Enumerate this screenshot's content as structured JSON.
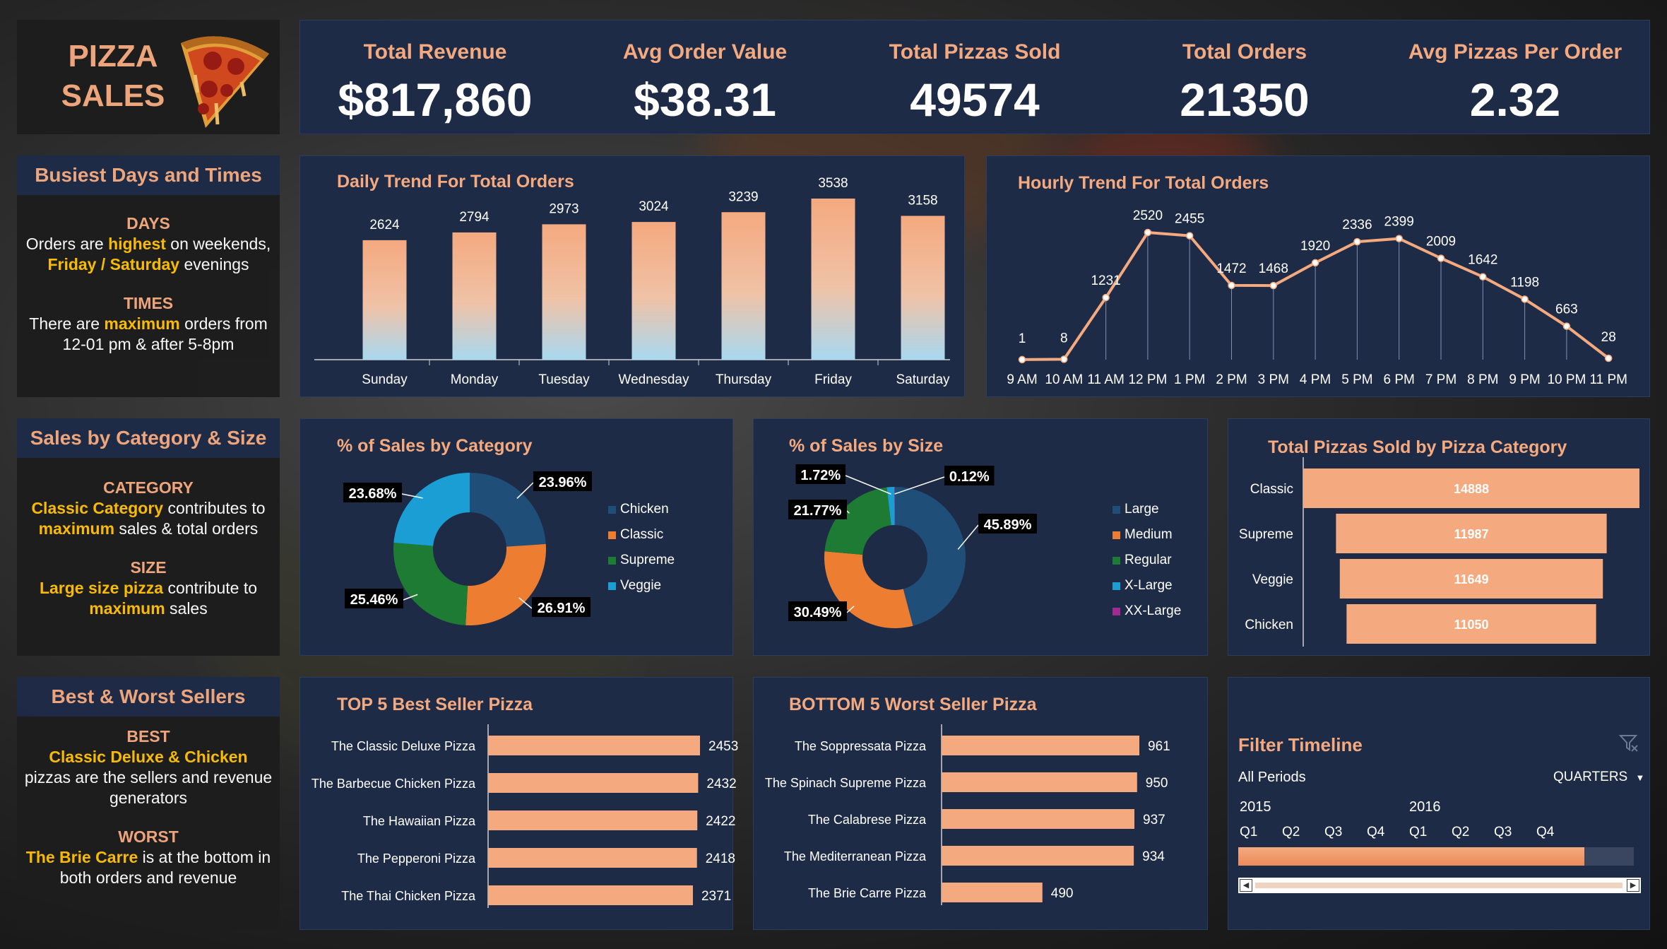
{
  "logo": {
    "line1": "PIZZA",
    "line2": "SALES"
  },
  "kpis": [
    {
      "label": "Total Revenue",
      "value": "$817,860"
    },
    {
      "label": "Avg Order Value",
      "value": "$38.31"
    },
    {
      "label": "Total Pizzas Sold",
      "value": "49574"
    },
    {
      "label": "Total Orders",
      "value": "21350"
    },
    {
      "label": "Avg Pizzas Per Order",
      "value": "2.32"
    }
  ],
  "busiest": {
    "title": "Busiest Days and Times",
    "days_label": "DAYS",
    "days_t1": "Orders are ",
    "days_h1": "highest",
    "days_t2": " on weekends, ",
    "days_h2": "Friday / Saturday",
    "days_t3": " evenings",
    "times_label": "TIMES",
    "times_t1": "There are ",
    "times_h1": "maximum",
    "times_t2": " orders from 12-01 pm & after 5-8pm"
  },
  "category_size": {
    "title": "Sales by Category & Size",
    "cat_label": "CATEGORY",
    "cat_h1": "Classic Category",
    "cat_t1": " contributes to ",
    "cat_h2": "maximum",
    "cat_t2": " sales & total orders",
    "size_label": "SIZE",
    "size_h1": "Large size pizza",
    "size_t1": " contribute to ",
    "size_h2": "maximum",
    "size_t2": " sales"
  },
  "best_worst": {
    "title": "Best & Worst Sellers",
    "best_label": "BEST",
    "best_h1": "Classic Deluxe & Chicken",
    "best_t1": " pizzas are the sellers and revenue generators",
    "worst_label": "WORST",
    "worst_h1": "The Brie Carre",
    "worst_t1": " is at the bottom in both orders and revenue"
  },
  "chart_data": [
    {
      "type": "bar",
      "title": "Daily Trend For Total Orders",
      "categories": [
        "Sunday",
        "Monday",
        "Tuesday",
        "Wednesday",
        "Thursday",
        "Friday",
        "Saturday"
      ],
      "values": [
        2624,
        2794,
        2973,
        3024,
        3239,
        3538,
        3158
      ],
      "value_labels": [
        "2624",
        "2794",
        "2973",
        "3024",
        "3239",
        "3538",
        "3158"
      ],
      "ylim": [
        0,
        3538
      ]
    },
    {
      "type": "line",
      "title": "Hourly Trend For Total Orders",
      "categories": [
        "9 AM",
        "10 AM",
        "11 AM",
        "12 PM",
        "1 PM",
        "2 PM",
        "3 PM",
        "4 PM",
        "5 PM",
        "6 PM",
        "7 PM",
        "8 PM",
        "9 PM",
        "10 PM",
        "11 PM"
      ],
      "values": [
        1,
        8,
        1231,
        2520,
        2455,
        1472,
        1468,
        1920,
        2336,
        2399,
        2009,
        1642,
        1198,
        663,
        28
      ],
      "value_labels": [
        "1",
        "8",
        "1231",
        "2520",
        "2455",
        "1472",
        "1468",
        "1920",
        "2336",
        "2399",
        "2009",
        "1642",
        "1198",
        "663",
        "28"
      ],
      "ylim": [
        0,
        2520
      ]
    },
    {
      "type": "pie",
      "title": "% of Sales by Category",
      "labels": [
        "Chicken",
        "Classic",
        "Supreme",
        "Veggie"
      ],
      "values": [
        23.96,
        26.91,
        25.46,
        23.68
      ],
      "value_labels": [
        "23.96%",
        "26.91%",
        "25.46%",
        "23.68%"
      ],
      "colors": [
        "#1f4e79",
        "#ed7d31",
        "#1e7b34",
        "#1a9ed4"
      ],
      "legend": "right"
    },
    {
      "type": "pie",
      "title": "% of Sales by Size",
      "labels": [
        "Large",
        "Medium",
        "Regular",
        "X-Large",
        "XX-Large"
      ],
      "values": [
        45.89,
        30.49,
        21.77,
        1.72,
        0.12
      ],
      "value_labels": [
        "45.89%",
        "30.49%",
        "21.77%",
        "1.72%",
        "0.12%"
      ],
      "colors": [
        "#1f4e79",
        "#ed7d31",
        "#1e7b34",
        "#1a9ed4",
        "#a02b93"
      ],
      "legend": "right"
    },
    {
      "type": "bar",
      "orientation": "horizontal",
      "title": "Total Pizzas Sold by Pizza Category",
      "categories": [
        "Classic",
        "Supreme",
        "Veggie",
        "Chicken"
      ],
      "values": [
        14888,
        11987,
        11649,
        11050
      ],
      "value_labels": [
        "14888",
        "11987",
        "11649",
        "11050"
      ]
    },
    {
      "type": "bar",
      "orientation": "horizontal",
      "title": "TOP 5 Best Seller Pizza",
      "categories": [
        "The Classic Deluxe Pizza",
        "The Barbecue Chicken Pizza",
        "The Hawaiian Pizza",
        "The Pepperoni Pizza",
        "The Thai Chicken Pizza"
      ],
      "values": [
        2453,
        2432,
        2422,
        2418,
        2371
      ],
      "value_labels": [
        "2453",
        "2432",
        "2422",
        "2418",
        "2371"
      ]
    },
    {
      "type": "bar",
      "orientation": "horizontal",
      "title": "BOTTOM 5 Worst Seller Pizza",
      "categories": [
        "The Soppressata Pizza",
        "The Spinach Supreme Pizza",
        "The Calabrese Pizza",
        "The Mediterranean Pizza",
        "The Brie Carre Pizza"
      ],
      "values": [
        961,
        950,
        937,
        934,
        490
      ],
      "value_labels": [
        "961",
        "950",
        "937",
        "934",
        "490"
      ]
    }
  ],
  "timeline": {
    "title": "Filter Timeline",
    "all_periods": "All Periods",
    "level": "QUARTERS",
    "years": [
      "2015",
      "2016"
    ],
    "quarters": [
      "Q1",
      "Q2",
      "Q3",
      "Q4",
      "Q1",
      "Q2",
      "Q3",
      "Q4"
    ],
    "selected_fraction": 0.875
  },
  "colors": {
    "accent": "#f4a97f",
    "highlight": "#ffc000",
    "panel": "#1e2b47"
  }
}
